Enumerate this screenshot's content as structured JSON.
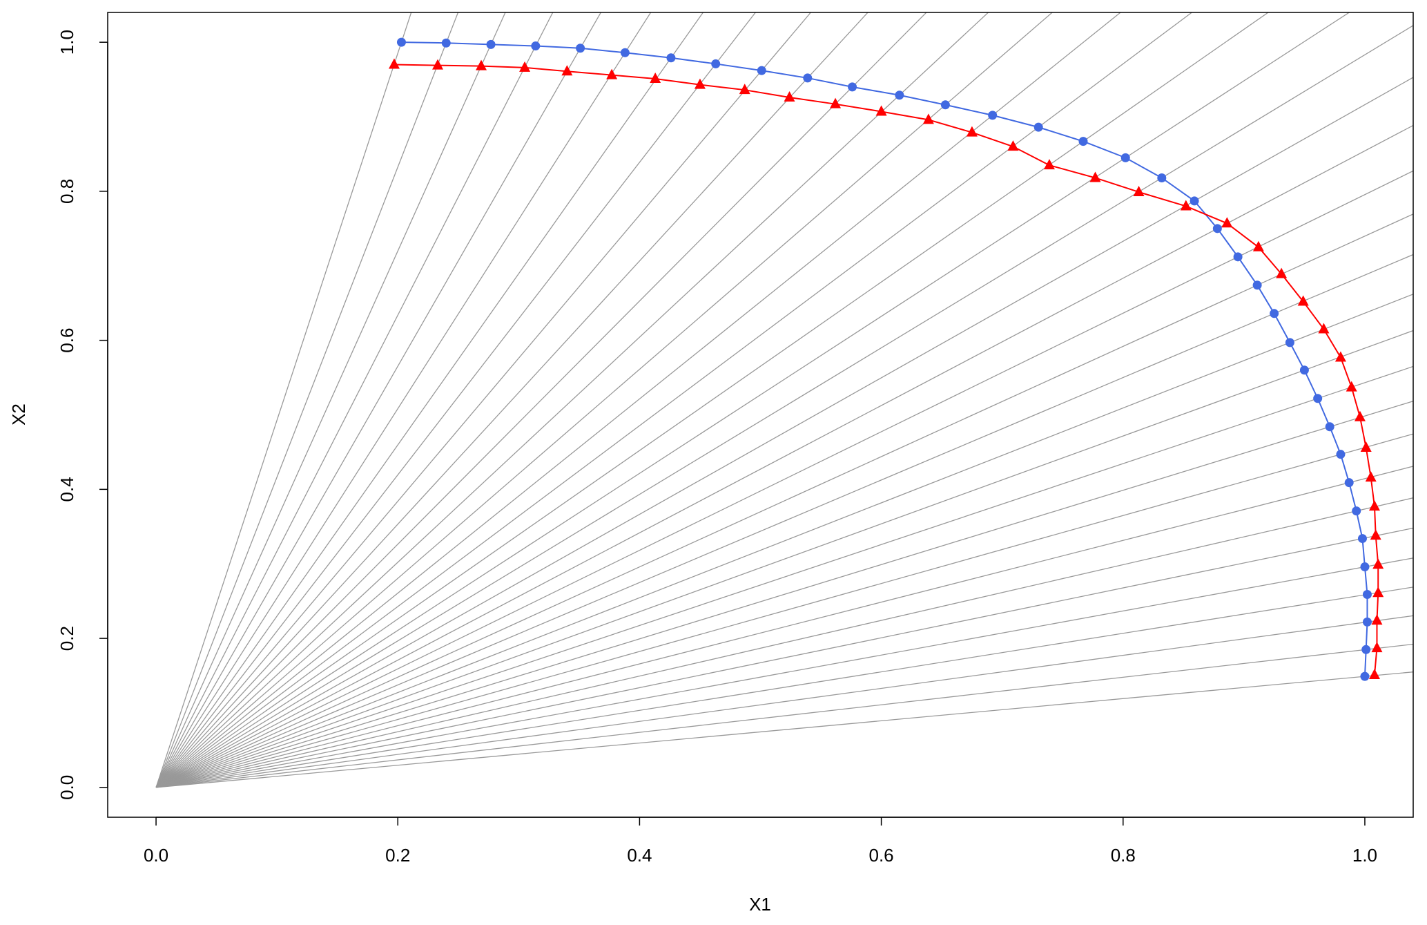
{
  "chart_data": {
    "type": "line",
    "x_label": "X1",
    "y_label": "X2",
    "xlim": [
      -0.04,
      1.04
    ],
    "ylim": [
      -0.04,
      1.04
    ],
    "xticks": [
      {
        "value": 0,
        "label": "0.0"
      },
      0.2,
      0.4,
      0.6,
      0.8,
      {
        "value": 1,
        "label": "1.0"
      }
    ],
    "yticks": [
      {
        "value": 0,
        "label": "0.0"
      },
      0.2,
      0.4,
      0.6,
      0.8,
      {
        "value": 1,
        "label": "1.0"
      }
    ],
    "ray_color": "#999999",
    "series": [
      {
        "color": "#4169e1",
        "marker": "circle",
        "x": [
          0.203,
          0.24,
          0.277,
          0.314,
          0.351,
          0.388,
          0.426,
          0.463,
          0.501,
          0.539,
          0.576,
          0.615,
          0.653,
          0.692,
          0.73,
          0.767,
          0.802,
          0.832,
          0.859,
          0.878,
          0.895,
          0.911,
          0.925,
          0.938,
          0.95,
          0.961,
          0.971,
          0.98,
          0.987,
          0.993,
          0.998,
          1.0,
          1.002,
          1.002,
          1.001,
          1.0
        ],
        "values": [
          1.0,
          0.999,
          0.997,
          0.995,
          0.992,
          0.986,
          0.979,
          0.971,
          0.962,
          0.952,
          0.94,
          0.929,
          0.916,
          0.902,
          0.886,
          0.867,
          0.845,
          0.818,
          0.787,
          0.75,
          0.712,
          0.674,
          0.636,
          0.597,
          0.56,
          0.522,
          0.484,
          0.447,
          0.409,
          0.371,
          0.334,
          0.296,
          0.259,
          0.222,
          0.185,
          0.149
        ]
      },
      {
        "color": "#ff0000",
        "marker": "triangle",
        "x": [
          0.197,
          0.233,
          0.269,
          0.305,
          0.34,
          0.377,
          0.413,
          0.45,
          0.487,
          0.524,
          0.562,
          0.6,
          0.639,
          0.675,
          0.709,
          0.739,
          0.777,
          0.813,
          0.852,
          0.886,
          0.912,
          0.931,
          0.949,
          0.966,
          0.98,
          0.989,
          0.996,
          1.001,
          1.005,
          1.008,
          1.009,
          1.011,
          1.011,
          1.01,
          1.01,
          1.008
        ],
        "values": [
          0.97,
          0.969,
          0.968,
          0.966,
          0.961,
          0.956,
          0.951,
          0.943,
          0.936,
          0.926,
          0.917,
          0.907,
          0.896,
          0.879,
          0.86,
          0.835,
          0.818,
          0.799,
          0.78,
          0.757,
          0.725,
          0.689,
          0.652,
          0.615,
          0.577,
          0.537,
          0.497,
          0.456,
          0.416,
          0.377,
          0.338,
          0.299,
          0.261,
          0.224,
          0.187,
          0.151
        ]
      }
    ]
  }
}
